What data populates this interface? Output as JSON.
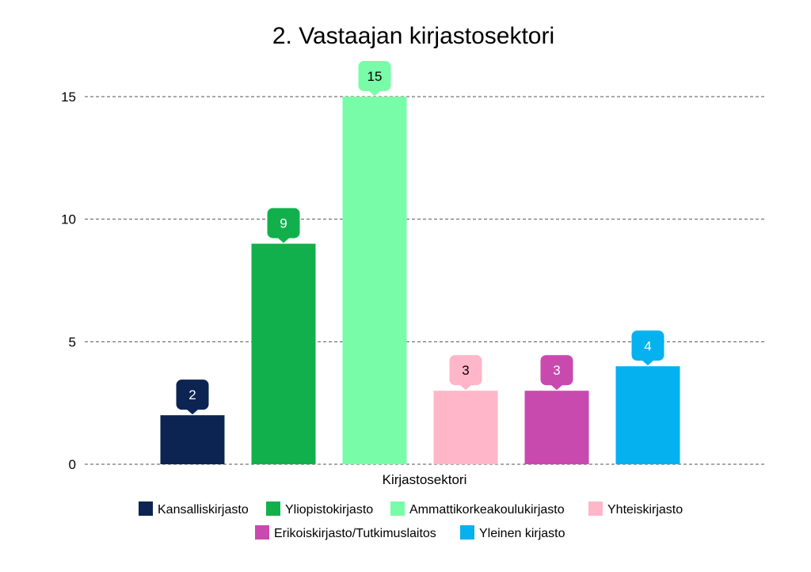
{
  "chart_data": {
    "type": "bar",
    "title": "2. Vastaajan kirjastosektori",
    "xlabel": "Kirjastosektori",
    "ylabel": "",
    "ylim": [
      0,
      15
    ],
    "yticks": [
      0,
      5,
      10,
      15
    ],
    "grid": true,
    "legend_position": "bottom",
    "categories": [
      "Kansalliskirjasto",
      "Yliopistokirjasto",
      "Ammattikorkeakoulukirjasto",
      "Yhteiskirjasto",
      "Erikoiskirjasto/Tutkimuslaitos",
      "Yleinen kirjasto"
    ],
    "values": [
      2,
      9,
      15,
      3,
      3,
      4
    ],
    "colors": [
      "#0b2452",
      "#12b04c",
      "#78fca7",
      "#feb6c8",
      "#c84aaf",
      "#06b1ef"
    ],
    "label_text_colors": [
      "#ffffff",
      "#ffffff",
      "#000000",
      "#000000",
      "#ffffff",
      "#ffffff"
    ]
  }
}
